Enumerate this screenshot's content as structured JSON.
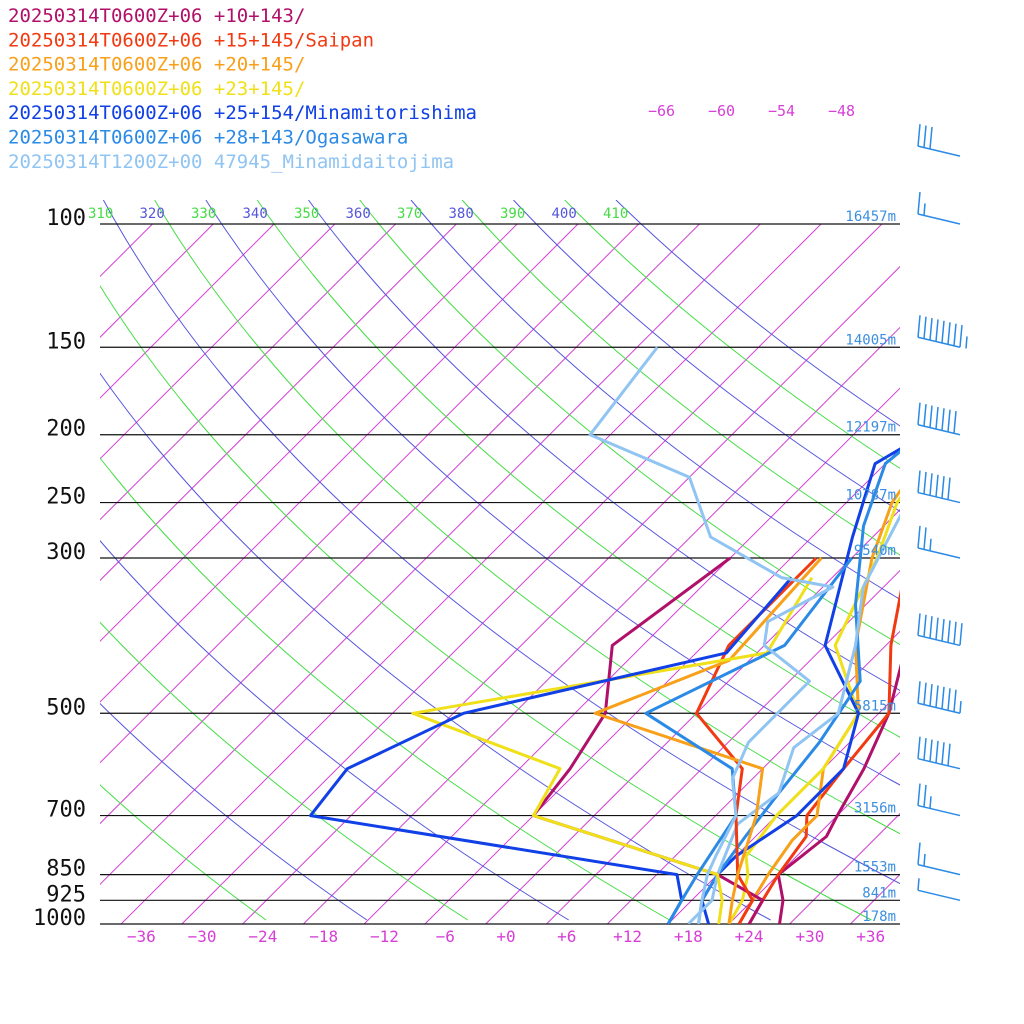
{
  "chart_data": {
    "type": "line",
    "pressure_levels": [
      {
        "p": 100,
        "label": "100",
        "height": "16457m"
      },
      {
        "p": 150,
        "label": "150",
        "height": "14005m"
      },
      {
        "p": 200,
        "label": "200",
        "height": "12197m"
      },
      {
        "p": 250,
        "label": "250",
        "height": "10787m"
      },
      {
        "p": 300,
        "label": "300",
        "height": "9540m"
      },
      {
        "p": 500,
        "label": "500",
        "height": "5815m"
      },
      {
        "p": 700,
        "label": "700",
        "height": "3156m"
      },
      {
        "p": 850,
        "label": "850",
        "height": "1553m"
      },
      {
        "p": 925,
        "label": "925",
        "height": "841m"
      },
      {
        "p": 1000,
        "label": "1000",
        "height": "178m"
      }
    ],
    "x_ticks": [
      "−36",
      "−30",
      "−24",
      "−18",
      "−12",
      "−6",
      "+0",
      "+6",
      "+12",
      "+18",
      "+24",
      "+30",
      "+36"
    ],
    "x_tick_values": [
      -36,
      -30,
      -24,
      -18,
      -12,
      -6,
      0,
      6,
      12,
      18,
      24,
      30,
      36
    ],
    "xlim": [
      -40,
      40
    ],
    "ylim": [
      1000,
      100
    ],
    "y_scale": "log",
    "theta_labels": [
      {
        "value": "310",
        "color": "#44dd44"
      },
      {
        "value": "320",
        "color": "#5555dd"
      },
      {
        "value": "330",
        "color": "#44dd44"
      },
      {
        "value": "340",
        "color": "#5555dd"
      },
      {
        "value": "350",
        "color": "#44dd44"
      },
      {
        "value": "360",
        "color": "#5555dd"
      },
      {
        "value": "370",
        "color": "#44dd44"
      },
      {
        "value": "380",
        "color": "#5555dd"
      },
      {
        "value": "390",
        "color": "#44dd44"
      },
      {
        "value": "400",
        "color": "#5555dd"
      },
      {
        "value": "410",
        "color": "#44dd44"
      }
    ],
    "mixing_labels": [
      "−66",
      "−60",
      "−54",
      "−48"
    ],
    "series": [
      {
        "name": "20250314T0600Z+06 +10+143/",
        "color": "#b0106a",
        "points": [
          [
            -13,
            100
          ],
          [
            -14,
            115
          ],
          [
            -12,
            150
          ],
          [
            -4.5,
            200
          ],
          [
            -2,
            250
          ],
          [
            4,
            300
          ],
          [
            12,
            400
          ],
          [
            17,
            500
          ],
          [
            20,
            600
          ],
          [
            22,
            700
          ],
          [
            23,
            750
          ],
          [
            22,
            850
          ],
          [
            25,
            925
          ],
          [
            27,
            1000
          ]
        ]
      },
      {
        "name": "20250314T0600Z+06 +15+145/Saipan",
        "color": "#f23a12",
        "points": [
          [
            -11,
            100
          ],
          [
            -12,
            130
          ],
          [
            -10,
            150
          ],
          [
            -4.5,
            200
          ],
          [
            -2.5,
            250
          ],
          [
            3.5,
            300
          ],
          [
            10.5,
            400
          ],
          [
            17,
            500
          ],
          [
            18,
            600
          ],
          [
            19,
            700
          ],
          [
            21,
            750
          ],
          [
            22,
            850
          ],
          [
            23,
            925
          ],
          [
            24,
            1000
          ]
        ]
      },
      {
        "name": "20250314T0600Z+06 +20+145/",
        "color": "#f8a01a",
        "points": [
          [
            -9.5,
            100
          ],
          [
            -12,
            120
          ],
          [
            -10,
            150
          ],
          [
            -5.5,
            200
          ],
          [
            -3.5,
            250
          ],
          [
            0,
            300
          ],
          [
            7,
            400
          ],
          [
            14,
            500
          ],
          [
            16,
            600
          ],
          [
            20,
            700
          ],
          [
            20,
            760
          ],
          [
            21,
            850
          ],
          [
            22,
            925
          ],
          [
            23,
            1000
          ]
        ]
      },
      {
        "name": "20250314T0600Z+06 +23+145/",
        "color": "#f0e01a",
        "points": [
          [
            -7,
            100
          ],
          [
            -10,
            120
          ],
          [
            -8,
            150
          ],
          [
            -5,
            200
          ],
          [
            -3,
            250
          ],
          [
            0.5,
            300
          ],
          [
            5,
            400
          ],
          [
            14,
            500
          ],
          [
            16,
            600
          ],
          [
            16,
            700
          ],
          [
            17,
            800
          ],
          [
            19,
            850
          ],
          [
            21,
            925
          ],
          [
            22,
            1000
          ]
        ]
      },
      {
        "name": "20250314T0600Z+06 +25+154/Minamitorishima",
        "color": "#1040e6",
        "points": [
          [
            -2.5,
            100
          ],
          [
            -6,
            140
          ],
          [
            -4,
            170
          ],
          [
            -7,
            200
          ],
          [
            -9,
            220
          ],
          [
            -4,
            280
          ],
          [
            4,
            400
          ],
          [
            14,
            500
          ],
          [
            18,
            600
          ],
          [
            18,
            700
          ],
          [
            16,
            800
          ],
          [
            16,
            850
          ],
          [
            17,
            925
          ],
          [
            20,
            1000
          ]
        ]
      },
      {
        "name": "20250314T0600Z+06 +28+143/Ogasawara",
        "color": "#2a8ae6",
        "points": [
          [
            -0.5,
            100
          ],
          [
            -5.5,
            150
          ],
          [
            -7,
            190
          ],
          [
            -8,
            220
          ],
          [
            -4,
            270
          ],
          [
            3,
            350
          ],
          [
            11,
            450
          ],
          [
            13,
            550
          ],
          [
            14,
            650
          ],
          [
            15,
            750
          ],
          [
            16,
            850
          ],
          [
            17,
            925
          ],
          [
            19,
            1000
          ]
        ]
      },
      {
        "name": "20250314T1200Z+00 47945_Minamidaitojima",
        "color": "#90c4f2",
        "points": [
          [
            -3,
            100
          ],
          [
            -6,
            130
          ],
          [
            -1,
            200
          ],
          [
            -2,
            250
          ],
          [
            2,
            330
          ],
          [
            7,
            400
          ],
          [
            12,
            500
          ],
          [
            11,
            560
          ],
          [
            14,
            650
          ],
          [
            13,
            720
          ],
          [
            16,
            850
          ],
          [
            18,
            925
          ],
          [
            18,
            1000
          ]
        ]
      },
      {
        "name": "",
        "color": "#b0106a",
        "dew": true,
        "points": [
          [
            -14,
            300
          ],
          [
            -17,
            400
          ],
          [
            -11,
            500
          ],
          [
            -9,
            600
          ],
          [
            -8,
            700
          ],
          [
            16,
            850
          ],
          [
            23,
            925
          ],
          [
            24,
            1000
          ]
        ]
      },
      {
        "name": "",
        "color": "#f23a12",
        "dew": true,
        "points": [
          [
            -5.5,
            300
          ],
          [
            -5.5,
            400
          ],
          [
            -2,
            500
          ],
          [
            8,
            600
          ],
          [
            12,
            700
          ],
          [
            18,
            850
          ],
          [
            22,
            925
          ],
          [
            23,
            1000
          ]
        ]
      },
      {
        "name": "",
        "color": "#f8a01a",
        "dew": true,
        "points": [
          [
            -5,
            300
          ],
          [
            -4,
            420
          ],
          [
            -12,
            500
          ],
          [
            10,
            600
          ],
          [
            14,
            700
          ],
          [
            18,
            850
          ],
          [
            20,
            925
          ],
          [
            22,
            1000
          ]
        ]
      },
      {
        "name": "",
        "color": "#f0e01a",
        "dew": true,
        "points": [
          [
            -4,
            320
          ],
          [
            -1,
            410
          ],
          [
            -30,
            500
          ],
          [
            -10,
            600
          ],
          [
            -8,
            700
          ],
          [
            16,
            850
          ],
          [
            19,
            925
          ],
          [
            21,
            1000
          ]
        ]
      },
      {
        "name": "",
        "color": "#1040e6",
        "dew": true,
        "points": [
          [
            -6,
            320
          ],
          [
            -5,
            410
          ],
          [
            -25,
            500
          ],
          [
            -31,
            600
          ],
          [
            -30,
            700
          ],
          [
            12,
            850
          ],
          [
            15,
            925
          ],
          [
            16,
            1000
          ]
        ]
      },
      {
        "name": "",
        "color": "#2a8ae6",
        "dew": true,
        "points": [
          [
            -2,
            300
          ],
          [
            0,
            400
          ],
          [
            -7,
            500
          ],
          [
            7,
            600
          ],
          [
            12,
            700
          ],
          [
            14,
            850
          ],
          [
            15,
            925
          ],
          [
            16,
            1000
          ]
        ]
      },
      {
        "name": "",
        "color": "#90c4f2",
        "dew": true,
        "points": [
          [
            -42,
            150
          ],
          [
            -40,
            200
          ],
          [
            -26,
            230
          ],
          [
            -18,
            280
          ],
          [
            -7,
            320
          ],
          [
            -1,
            330
          ],
          [
            -4,
            370
          ],
          [
            -2,
            400
          ],
          [
            6,
            450
          ],
          [
            6,
            550
          ],
          [
            8,
            620
          ],
          [
            12,
            700
          ],
          [
            14,
            800
          ],
          [
            15,
            850
          ],
          [
            17,
            925
          ],
          [
            19,
            1000
          ]
        ]
      }
    ],
    "wind_barbs": [
      {
        "p": 80,
        "speed": 30
      },
      {
        "p": 100,
        "speed": 15
      },
      {
        "p": 150,
        "speed": 85
      },
      {
        "p": 200,
        "speed": 70
      },
      {
        "p": 250,
        "speed": 60
      },
      {
        "p": 300,
        "speed": 25
      },
      {
        "p": 400,
        "speed": 80
      },
      {
        "p": 500,
        "speed": 75
      },
      {
        "p": 600,
        "speed": 60
      },
      {
        "p": 700,
        "speed": 25
      },
      {
        "p": 850,
        "speed": 15
      },
      {
        "p": 925,
        "speed": 5
      }
    ]
  }
}
